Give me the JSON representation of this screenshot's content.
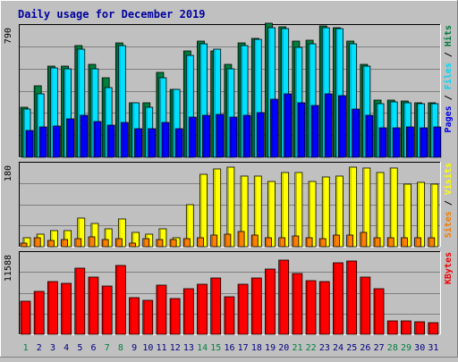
{
  "chart_data": [
    {
      "type": "bar",
      "title": "Daily usage for December 2019",
      "categories": [
        "1",
        "2",
        "3",
        "4",
        "5",
        "6",
        "7",
        "8",
        "9",
        "10",
        "11",
        "12",
        "13",
        "14",
        "15",
        "16",
        "17",
        "18",
        "19",
        "20",
        "21",
        "22",
        "23",
        "24",
        "25",
        "26",
        "27",
        "28",
        "29",
        "30",
        "31"
      ],
      "weekend_days": [
        "1",
        "7",
        "8",
        "14",
        "15",
        "21",
        "22",
        "28",
        "29"
      ],
      "ylim": [
        0,
        790
      ],
      "ytick_label": "790",
      "ylabel_parts": [
        "Pages",
        "Files",
        "Hits"
      ],
      "series": [
        {
          "name": "Hits",
          "color": "#008040",
          "values": [
            300,
            430,
            550,
            550,
            670,
            560,
            480,
            690,
            330,
            330,
            510,
            410,
            640,
            700,
            640,
            560,
            690,
            715,
            805,
            785,
            700,
            705,
            790,
            780,
            700,
            560,
            345,
            345,
            340,
            330,
            330
          ]
        },
        {
          "name": "Files",
          "color": "#00e0ff",
          "values": [
            290,
            380,
            540,
            530,
            650,
            530,
            420,
            670,
            330,
            300,
            480,
            410,
            610,
            680,
            650,
            530,
            670,
            710,
            780,
            775,
            660,
            680,
            780,
            775,
            680,
            550,
            320,
            335,
            330,
            320,
            325
          ]
        },
        {
          "name": "Pages",
          "color": "#0000ff",
          "values": [
            160,
            185,
            190,
            230,
            250,
            215,
            195,
            210,
            170,
            170,
            210,
            170,
            240,
            250,
            260,
            240,
            250,
            270,
            350,
            380,
            330,
            310,
            380,
            370,
            290,
            250,
            180,
            180,
            185,
            180,
            185
          ]
        }
      ]
    },
    {
      "type": "bar",
      "ylim": [
        0,
        180
      ],
      "ytick_label": "180",
      "ylabel_parts": [
        "Sites",
        "Visits"
      ],
      "series": [
        {
          "name": "Visits",
          "color": "#ffff00",
          "values": [
            20,
            28,
            35,
            35,
            62,
            50,
            38,
            60,
            30,
            28,
            38,
            20,
            90,
            157,
            168,
            173,
            153,
            153,
            142,
            160,
            160,
            142,
            150,
            153,
            173,
            170,
            160,
            170,
            135,
            140,
            136
          ]
        },
        {
          "name": "Sites",
          "color": "#ff8000",
          "values": [
            8,
            20,
            13,
            15,
            18,
            22,
            15,
            18,
            8,
            18,
            15,
            15,
            18,
            20,
            25,
            28,
            33,
            25,
            20,
            20,
            23,
            20,
            18,
            25,
            25,
            30,
            20,
            20,
            20,
            20,
            20
          ]
        }
      ]
    },
    {
      "type": "bar",
      "ylim": [
        0,
        11588
      ],
      "ytick_label": "11588",
      "ylabel_parts": [
        "KBytes"
      ],
      "series": [
        {
          "name": "KBytes",
          "color": "#ff0000",
          "values": [
            4680,
            6100,
            7540,
            7200,
            9480,
            8160,
            6850,
            9850,
            5250,
            4810,
            7040,
            5050,
            6500,
            7170,
            8000,
            5370,
            7070,
            8010,
            9250,
            10560,
            8710,
            7580,
            7480,
            10240,
            10500,
            8200,
            6500,
            1850,
            1960,
            1720,
            1630
          ]
        }
      ]
    }
  ]
}
